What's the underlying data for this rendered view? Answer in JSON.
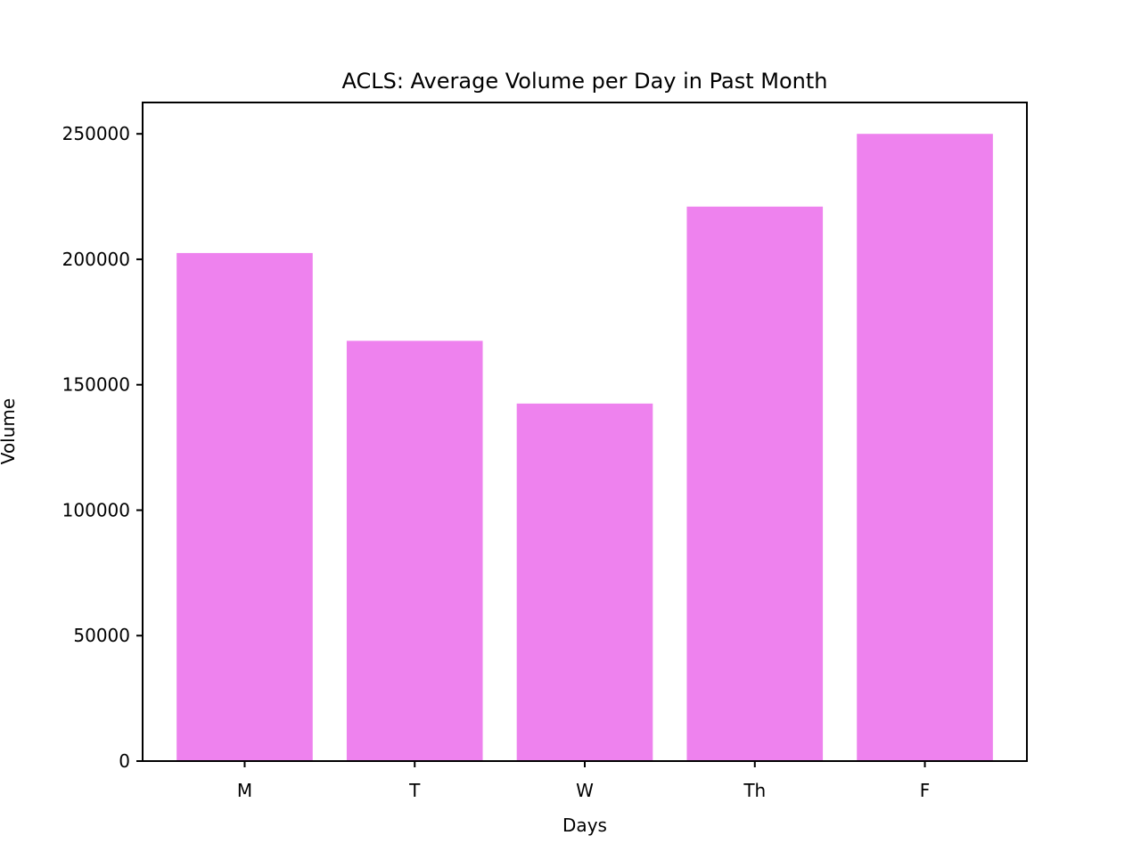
{
  "chart_data": {
    "type": "bar",
    "title": "ACLS: Average Volume per Day in Past Month",
    "xlabel": "Days",
    "ylabel": "Volume",
    "categories": [
      "M",
      "T",
      "W",
      "Th",
      "F"
    ],
    "values": [
      202500,
      167500,
      142500,
      221000,
      250000
    ],
    "ylim": [
      0,
      262500
    ],
    "yticks": [
      0,
      50000,
      100000,
      150000,
      200000,
      250000
    ],
    "ytick_labels": [
      "0",
      "50000",
      "100000",
      "150000",
      "200000",
      "250000"
    ],
    "bar_color": "#ee82ee",
    "grid": false,
    "legend": "none"
  }
}
